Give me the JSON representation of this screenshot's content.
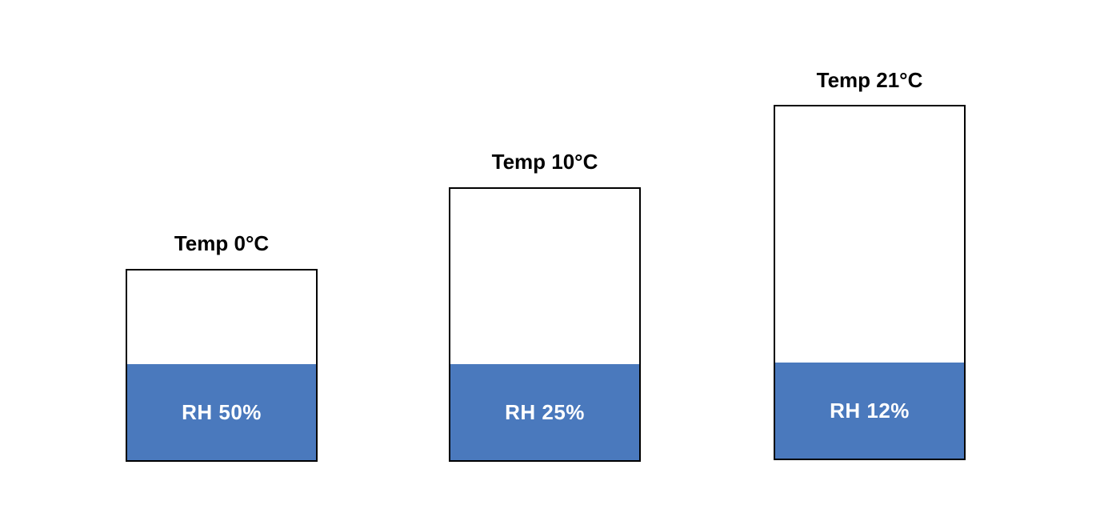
{
  "colors": {
    "fill": "#4a79bd",
    "outline": "#000000",
    "label_on_fill": "#ffffff"
  },
  "containers": [
    {
      "temp_label": "Temp 0°C",
      "rh_label": "RH 50%"
    },
    {
      "temp_label": "Temp 10°C",
      "rh_label": "RH 25%"
    },
    {
      "temp_label": "Temp 21°C",
      "rh_label": "RH 12%"
    }
  ]
}
